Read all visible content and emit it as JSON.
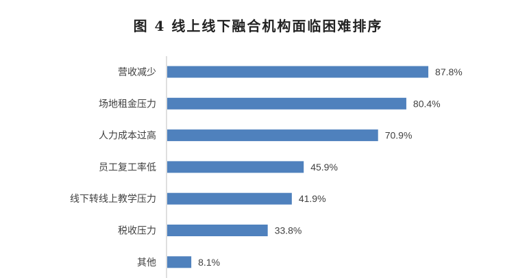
{
  "chart_data": {
    "type": "bar",
    "orientation": "horizontal",
    "title": "图 4  线上线下融合机构面临困难排序",
    "categories": [
      "营收减少",
      "场地租金压力",
      "人力成本过高",
      "员工复工率低",
      "线下转线上教学压力",
      "税收压力",
      "其他"
    ],
    "values": [
      87.8,
      80.4,
      70.9,
      45.9,
      41.9,
      33.8,
      8.1
    ],
    "value_labels": [
      "87.8%",
      "80.4%",
      "70.9%",
      "45.9%",
      "41.9%",
      "33.8%",
      "8.1%"
    ],
    "xlim": [
      0,
      100
    ],
    "xlabel": "",
    "ylabel": "",
    "grid": false,
    "legend": "none",
    "colors": {
      "bar": "#4f81bd",
      "axis": "#bfbfbf",
      "text": "#404040"
    }
  }
}
